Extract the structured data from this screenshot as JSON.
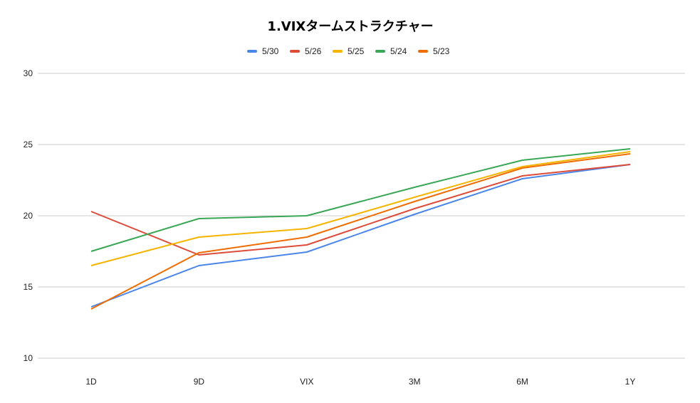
{
  "chart_data": {
    "type": "line",
    "title": "1.VIXタームストラクチャー",
    "xlabel": "",
    "ylabel": "",
    "categories": [
      "1D",
      "9D",
      "VIX",
      "3M",
      "6M",
      "1Y"
    ],
    "ylim": [
      10,
      30
    ],
    "yticks": [
      10,
      15,
      20,
      25,
      30
    ],
    "grid": true,
    "legend_position": "top",
    "series": [
      {
        "name": "5/30",
        "color": "#4a86e8",
        "values": [
          13.6,
          16.5,
          17.45,
          20.1,
          22.6,
          23.6
        ]
      },
      {
        "name": "5/26",
        "color": "#dd4b39",
        "values": [
          20.3,
          17.25,
          17.95,
          20.5,
          22.8,
          23.6
        ]
      },
      {
        "name": "5/25",
        "color": "#f4b400",
        "values": [
          16.5,
          18.5,
          19.1,
          21.3,
          23.45,
          24.5
        ]
      },
      {
        "name": "5/24",
        "color": "#3aa757",
        "values": [
          17.5,
          19.8,
          20.0,
          22.0,
          23.9,
          24.7
        ]
      },
      {
        "name": "5/23",
        "color": "#ef6c00",
        "values": [
          13.45,
          17.4,
          18.5,
          21.0,
          23.35,
          24.35
        ]
      }
    ]
  }
}
